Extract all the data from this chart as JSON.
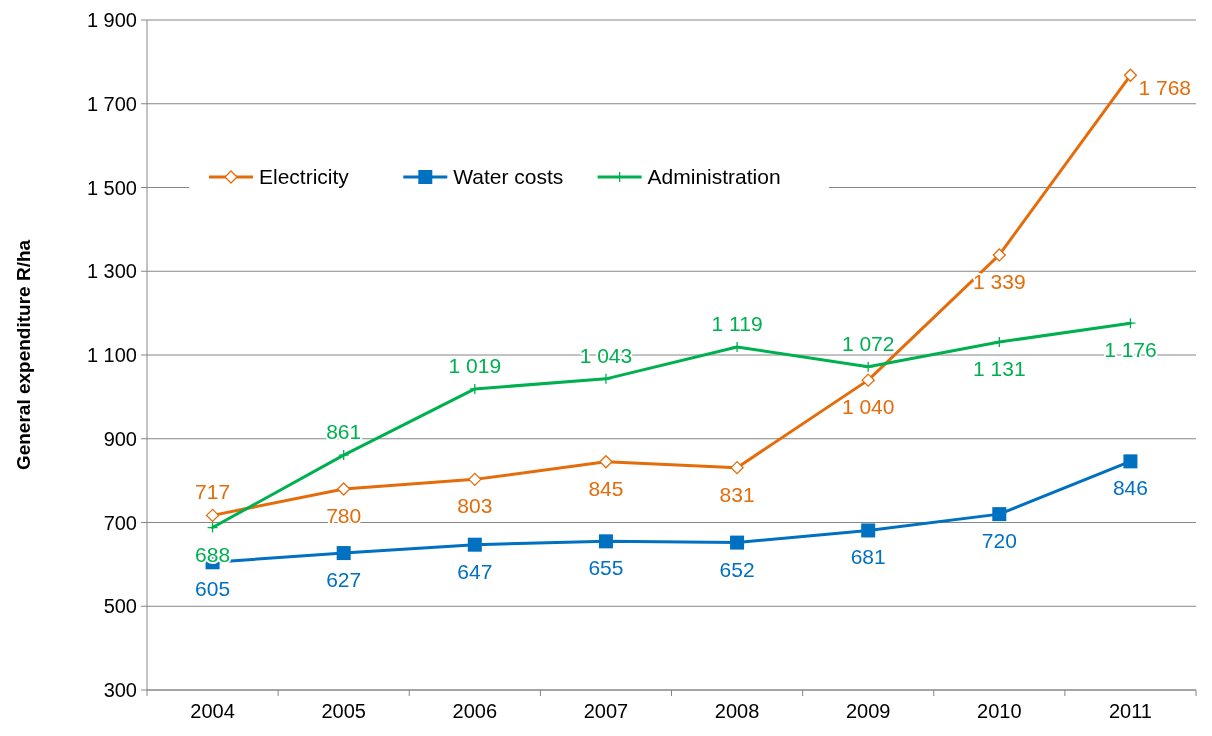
{
  "chart_data": {
    "type": "line",
    "ylabel": "General expenditure R/ha",
    "categories": [
      "2004",
      "2005",
      "2006",
      "2007",
      "2008",
      "2009",
      "2010",
      "2011"
    ],
    "series": [
      {
        "name": "Electricity",
        "color": "#e46c0a",
        "marker": "diamond",
        "values": [
          717,
          780,
          803,
          845,
          831,
          1040,
          1339,
          1768
        ],
        "value_labels": [
          "717",
          "780",
          "803",
          "845",
          "831",
          "1 040",
          "1 339",
          "1 768"
        ]
      },
      {
        "name": "Water costs",
        "color": "#0070c0",
        "marker": "square",
        "values": [
          605,
          627,
          647,
          655,
          652,
          681,
          720,
          846
        ],
        "value_labels": [
          "605",
          "627",
          "647",
          "655",
          "652",
          "681",
          "720",
          "846"
        ]
      },
      {
        "name": "Administration",
        "color": "#00b050",
        "marker": "cross",
        "values": [
          688,
          861,
          1019,
          1043,
          1119,
          1072,
          1131,
          1176
        ],
        "value_labels": [
          "688",
          "861",
          "1 019",
          "1 043",
          "1 119",
          "1 072",
          "1 131",
          "1 176"
        ]
      }
    ],
    "ylim": [
      300,
      1900
    ],
    "yticks": [
      {
        "value": 300,
        "label": "300"
      },
      {
        "value": 500,
        "label": "500"
      },
      {
        "value": 700,
        "label": "700"
      },
      {
        "value": 900,
        "label": "900"
      },
      {
        "value": 1100,
        "label": "1 100"
      },
      {
        "value": 1300,
        "label": "1 300"
      },
      {
        "value": 1500,
        "label": "1 500"
      },
      {
        "value": 1700,
        "label": "1 700"
      },
      {
        "value": 1900,
        "label": "1 900"
      }
    ],
    "grid": "y",
    "legend": "top left",
    "line_style": "solid"
  }
}
